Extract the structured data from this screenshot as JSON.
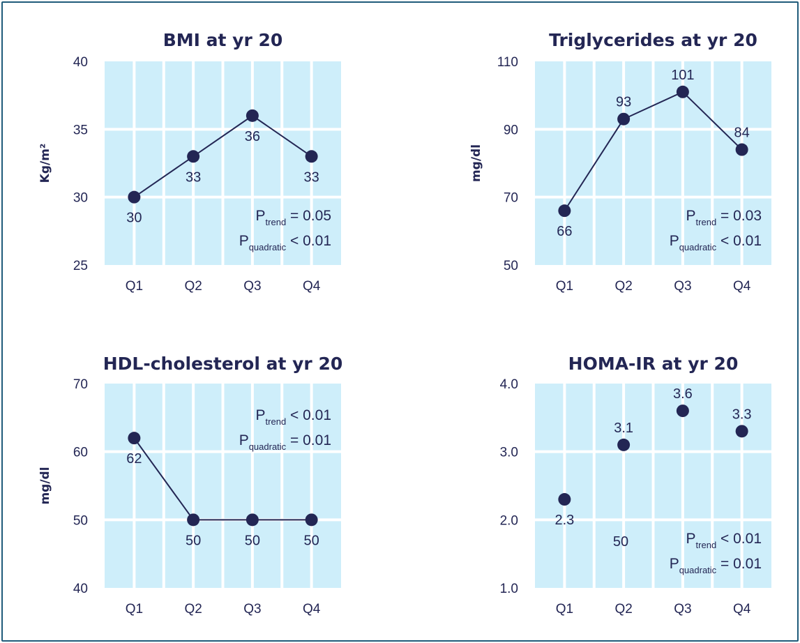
{
  "chart_data": [
    {
      "type": "line",
      "title": "BMI at yr 20",
      "ylabel": "Kg/m²",
      "ylim": [
        25,
        40
      ],
      "yticks": [
        "25",
        "30",
        "35",
        "40"
      ],
      "categories": [
        "Q1",
        "Q2",
        "Q3",
        "Q4"
      ],
      "values": [
        30,
        33,
        36,
        33
      ],
      "labels": [
        "30",
        "33",
        "36",
        "33"
      ],
      "label_pos": [
        "below",
        "below",
        "below",
        "below"
      ],
      "connected": true,
      "stats": [
        {
          "p": "P",
          "sub": "trend",
          "op": "= 0.05"
        },
        {
          "p": "P",
          "sub": "quadratic",
          "op": "< 0.01"
        }
      ],
      "stats_position": "bottom-right",
      "grid": true
    },
    {
      "type": "line",
      "title": "Triglycerides at yr 20",
      "ylabel": "mg/dl",
      "ylim": [
        50,
        110
      ],
      "yticks": [
        "50",
        "70",
        "90",
        "110"
      ],
      "categories": [
        "Q1",
        "Q2",
        "Q3",
        "Q4"
      ],
      "values": [
        66,
        93,
        101,
        84
      ],
      "labels": [
        "66",
        "93",
        "101",
        "84"
      ],
      "label_pos": [
        "below",
        "above",
        "above",
        "above"
      ],
      "connected": true,
      "stats": [
        {
          "p": "P",
          "sub": "trend",
          "op": "= 0.03"
        },
        {
          "p": "P",
          "sub": "quadratic",
          "op": "< 0.01"
        }
      ],
      "stats_position": "bottom-right",
      "grid": true
    },
    {
      "type": "line",
      "title": "HDL-cholesterol at yr 20",
      "ylabel": "mg/dl",
      "ylim": [
        40,
        70
      ],
      "yticks": [
        "40",
        "50",
        "60",
        "70"
      ],
      "categories": [
        "Q1",
        "Q2",
        "Q3",
        "Q4"
      ],
      "values": [
        62,
        50,
        50,
        50
      ],
      "labels": [
        "62",
        "50",
        "50",
        "50"
      ],
      "label_pos": [
        "below",
        "below",
        "below",
        "below"
      ],
      "connected": true,
      "stats": [
        {
          "p": "P",
          "sub": "trend",
          "op": "< 0.01"
        },
        {
          "p": "P",
          "sub": "quadratic",
          "op": "= 0.01"
        }
      ],
      "stats_position": "top-right",
      "grid": true
    },
    {
      "type": "scatter",
      "title": "HOMA-IR at yr 20",
      "ylabel": "",
      "ylim": [
        1.0,
        4.0
      ],
      "yticks": [
        "1.0",
        "2.0",
        "3.0",
        "4.0"
      ],
      "categories": [
        "Q1",
        "Q2",
        "Q3",
        "Q4"
      ],
      "values": [
        2.3,
        3.1,
        3.6,
        3.3
      ],
      "labels": [
        "2.3",
        "3.1",
        "3.6",
        "3.3"
      ],
      "label_pos": [
        "below",
        "above",
        "above",
        "above"
      ],
      "connected": false,
      "annotation": "50",
      "stats": [
        {
          "p": "P",
          "sub": "trend",
          "op": "< 0.01"
        },
        {
          "p": "P",
          "sub": "quadratic",
          "op": "= 0.01"
        }
      ],
      "stats_position": "bottom-right",
      "grid": true
    }
  ],
  "colors": {
    "plot_bg": "#ceeefa",
    "grid": "#ffffff",
    "ink": "#232654",
    "frame": "#1f5b7a"
  }
}
